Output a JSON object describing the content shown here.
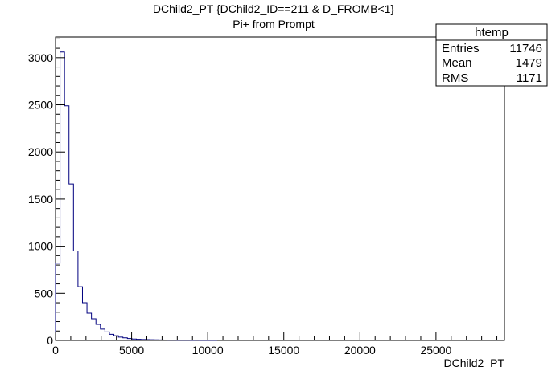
{
  "chart_data": {
    "type": "histogram",
    "title": "DChild2_PT {DChild2_ID==211 & D_FROMB<1}",
    "subtitle": "Pi+ from Prompt",
    "xlabel": "DChild2_PT",
    "ylabel": "",
    "xlim": [
      0,
      29500
    ],
    "ylim": [
      0,
      3220
    ],
    "bin_width": 295,
    "x_ticks": [
      0,
      5000,
      10000,
      15000,
      20000,
      25000
    ],
    "x_tick_labels": [
      "0",
      "5000",
      "10000",
      "15000",
      "20000",
      "25000"
    ],
    "y_ticks": [
      0,
      500,
      1000,
      1500,
      2000,
      2500,
      3000
    ],
    "y_tick_labels": [
      "0",
      "500",
      "1000",
      "1500",
      "2000",
      "2500",
      "3000"
    ],
    "line_color": "#00007f",
    "values": [
      820,
      3060,
      2490,
      1660,
      950,
      570,
      400,
      290,
      230,
      170,
      120,
      90,
      65,
      50,
      35,
      28,
      20,
      15,
      12,
      10,
      8,
      7,
      6,
      5,
      4,
      3,
      3,
      2,
      2,
      2,
      1,
      2,
      1,
      1,
      1,
      1
    ],
    "stats_box": {
      "name": "htemp",
      "rows": [
        {
          "label": "Entries",
          "value": "11746"
        },
        {
          "label": "Mean",
          "value": "1479"
        },
        {
          "label": "RMS",
          "value": "1171"
        }
      ]
    }
  }
}
